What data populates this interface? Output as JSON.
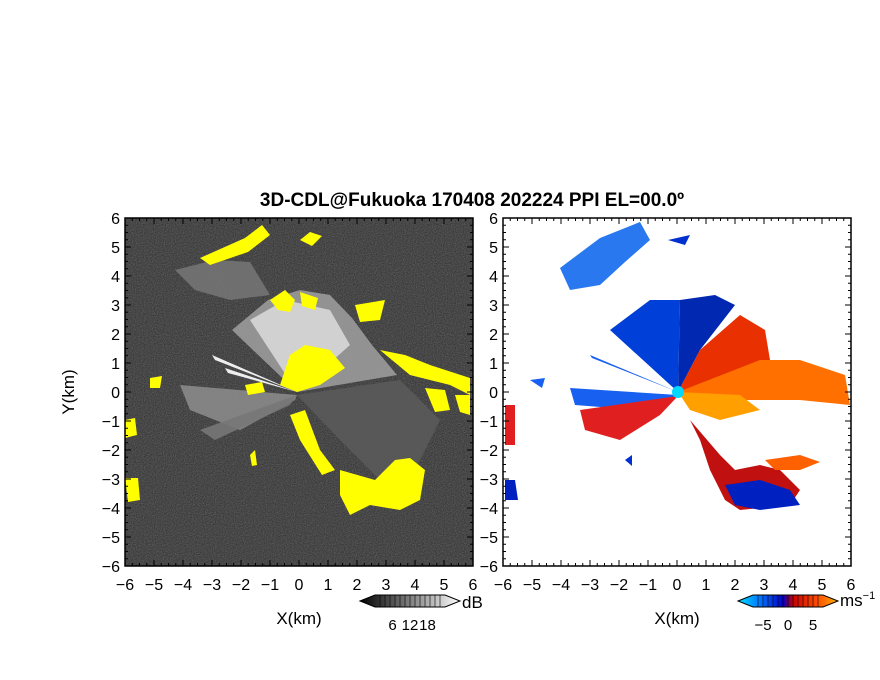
{
  "title": "3D-CDL@Fukuoka 170408 202224 PPI EL=00.0º",
  "chart_data": [
    {
      "type": "heatmap",
      "panel": "reflectivity",
      "xlabel": "X(km)",
      "ylabel": "Y(km)",
      "xlim": [
        -6,
        6
      ],
      "ylim": [
        -6,
        6
      ],
      "xticks": [
        "−6",
        "−5",
        "−4",
        "−3",
        "−2",
        "−1",
        "0",
        "1",
        "2",
        "3",
        "4",
        "5",
        "6"
      ],
      "yticks": [
        "6",
        "5",
        "4",
        "3",
        "2",
        "1",
        "0",
        "−1",
        "−2",
        "−3",
        "−4",
        "−5",
        "−6"
      ],
      "background_color": "#2b2b2b",
      "highlight_color": "#ffff00",
      "colorbar": {
        "unit": "dB",
        "ticks": [
          "6",
          "12",
          "18"
        ],
        "tick_values": [
          6,
          12,
          18
        ],
        "range": [
          0,
          24
        ],
        "colors": [
          "#000000",
          "#ffffff"
        ]
      }
    },
    {
      "type": "heatmap",
      "panel": "doppler-velocity",
      "xlabel": "X(km)",
      "xlim": [
        -6,
        6
      ],
      "ylim": [
        -6,
        6
      ],
      "xticks": [
        "−6",
        "−5",
        "−4",
        "−3",
        "−2",
        "−1",
        "0",
        "1",
        "2",
        "3",
        "4",
        "5",
        "6"
      ],
      "yticks": [
        "6",
        "5",
        "4",
        "3",
        "2",
        "1",
        "0",
        "−1",
        "−2",
        "−3",
        "−4",
        "−5",
        "−6"
      ],
      "background_color": "#ffffff",
      "colorbar": {
        "unit": "ms",
        "unit_exponent": "−1",
        "ticks": [
          "−5",
          "0",
          "5"
        ],
        "tick_values": [
          -5,
          0,
          5
        ],
        "range": [
          -7,
          7
        ],
        "colors": [
          "#00d8ff",
          "#0050ff",
          "#0000c0",
          "#c00000",
          "#ff4000",
          "#ffa000"
        ]
      }
    }
  ]
}
